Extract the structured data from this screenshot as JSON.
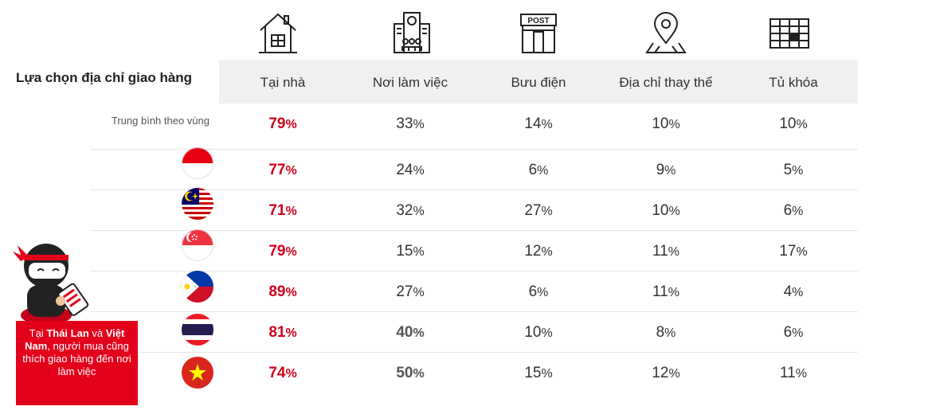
{
  "section_title": "Lựa chọn địa chỉ giao hàng",
  "columns": [
    {
      "label": "Tại nhà",
      "icon": "house-icon"
    },
    {
      "label": "Nơi làm việc",
      "icon": "office-building-icon"
    },
    {
      "label": "Bưu điện",
      "icon": "post-office-icon"
    },
    {
      "label": "Địa chỉ thay thế",
      "icon": "location-pin-icon"
    },
    {
      "label": "Tủ khóa",
      "icon": "locker-icon"
    }
  ],
  "post_sign": "POST",
  "average_label": "Trung bình theo vùng",
  "rows": [
    {
      "flag": "average",
      "values": [
        "79",
        "33",
        "14",
        "10",
        "10"
      ]
    },
    {
      "flag": "indonesia-flag-icon",
      "values": [
        "77",
        "24",
        "6",
        "9",
        "5"
      ]
    },
    {
      "flag": "malaysia-flag-icon",
      "values": [
        "71",
        "32",
        "27",
        "10",
        "6"
      ]
    },
    {
      "flag": "singapore-flag-icon",
      "values": [
        "79",
        "15",
        "12",
        "11",
        "17"
      ]
    },
    {
      "flag": "philippines-flag-icon",
      "values": [
        "89",
        "27",
        "6",
        "11",
        "4"
      ]
    },
    {
      "flag": "thailand-flag-icon",
      "values": [
        "81",
        "40",
        "10",
        "8",
        "6"
      ]
    },
    {
      "flag": "vietnam-flag-icon",
      "values": [
        "74",
        "50",
        "15",
        "12",
        "11"
      ]
    }
  ],
  "percent_sign": "%",
  "callout": {
    "prefix": "Tại ",
    "country1": "Thái Lan",
    "mid": " và ",
    "country2": "Việt Nam",
    "suffix": ", người mua cũng thích giao hàng đến nơi làm việc"
  },
  "colors": {
    "accent": "#d0021b",
    "callout_bg": "#e3001b",
    "header_band": "#f0f0f0"
  }
}
